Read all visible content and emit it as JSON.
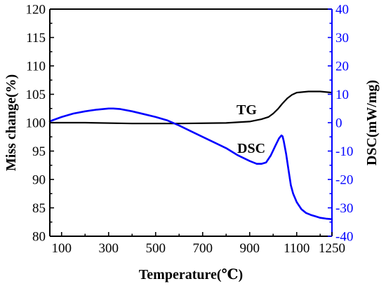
{
  "chart_data": {
    "type": "line",
    "xlabel": "Temperature(℃)",
    "ylabel_left": "Miss change(%)",
    "ylabel_right": "DSC(mW/mg)",
    "xlim": [
      50,
      1250
    ],
    "ylim_left": [
      80,
      120
    ],
    "ylim_right": [
      -40,
      40
    ],
    "x_ticks": [
      100,
      300,
      500,
      700,
      900,
      1100,
      1250
    ],
    "y_left_ticks": [
      80,
      85,
      90,
      95,
      100,
      105,
      110,
      115,
      120
    ],
    "y_right_ticks": [
      -40,
      -30,
      -20,
      -10,
      0,
      10,
      20,
      30,
      40
    ],
    "grid": false,
    "colors": {
      "tg": "#000000",
      "dsc": "#0000ff",
      "left_axis": "#000000",
      "right_axis": "#0000ff"
    },
    "series": [
      {
        "name": "TG",
        "axis": "left",
        "x": [
          50,
          200,
          400,
          600,
          800,
          900,
          950,
          980,
          1000,
          1020,
          1040,
          1060,
          1080,
          1100,
          1150,
          1200,
          1250
        ],
        "values": [
          100,
          100,
          99.85,
          99.85,
          99.95,
          100.2,
          100.6,
          101.0,
          101.6,
          102.4,
          103.4,
          104.3,
          104.9,
          105.3,
          105.5,
          105.5,
          105.3
        ]
      },
      {
        "name": "DSC",
        "axis": "right",
        "x": [
          50,
          100,
          150,
          200,
          250,
          300,
          320,
          350,
          400,
          450,
          500,
          550,
          600,
          650,
          700,
          750,
          800,
          850,
          900,
          930,
          950,
          970,
          990,
          1010,
          1025,
          1035,
          1040,
          1045,
          1055,
          1065,
          1075,
          1085,
          1100,
          1120,
          1140,
          1160,
          1180,
          1200,
          1225,
          1250
        ],
        "values": [
          0.5,
          2.0,
          3.2,
          4.0,
          4.6,
          5.0,
          5.0,
          4.8,
          4.0,
          3.0,
          2.0,
          0.8,
          -1.0,
          -3.0,
          -5.0,
          -7.0,
          -9.0,
          -11.5,
          -13.5,
          -14.5,
          -14.5,
          -14.0,
          -11.5,
          -8.0,
          -5.5,
          -4.5,
          -4.8,
          -6.5,
          -11.0,
          -16.5,
          -22.0,
          -25.0,
          -28.0,
          -30.5,
          -31.8,
          -32.5,
          -33.0,
          -33.5,
          -33.8,
          -34.0
        ]
      }
    ]
  }
}
